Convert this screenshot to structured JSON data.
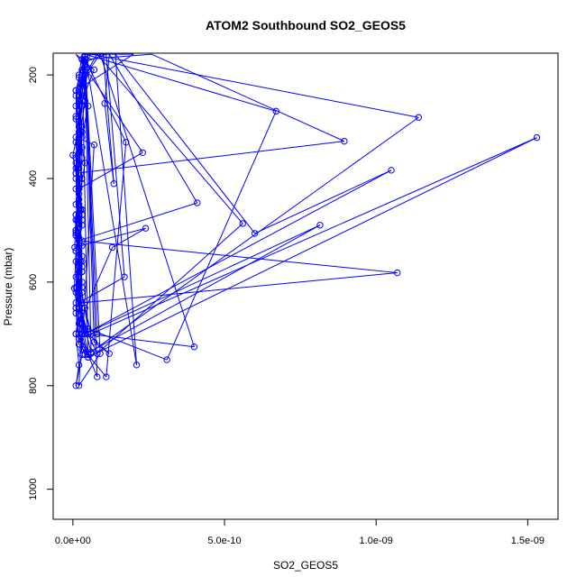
{
  "chart_data": {
    "type": "line",
    "title": "ATOM2 Southbound SO2_GEOS5",
    "xlabel": "SO2_GEOS5",
    "ylabel": "Pressure (mbar)",
    "xlim": [
      -6.5e-11,
      1.6e-09
    ],
    "ylim": [
      1058,
      158
    ],
    "y_reversed": true,
    "x_ticks": [
      {
        "value": 0,
        "label": "0.0e+00"
      },
      {
        "value": 5e-10,
        "label": "5.0e-10"
      },
      {
        "value": 1e-09,
        "label": "1.0e-09"
      },
      {
        "value": 1.5e-09,
        "label": "1.5e-09"
      }
    ],
    "y_ticks": [
      {
        "value": 200,
        "label": "200"
      },
      {
        "value": 400,
        "label": "400"
      },
      {
        "value": 600,
        "label": "600"
      },
      {
        "value": 800,
        "label": "800"
      },
      {
        "value": 1000,
        "label": "1000"
      }
    ],
    "series_color": "#0000ff",
    "marker": "open-circle",
    "grid": false,
    "series": [
      {
        "points": [
          [
            2e-11,
            720
          ],
          [
            1e-11,
            650
          ],
          [
            2.5e-11,
            560
          ],
          [
            1.5e-11,
            480
          ],
          [
            3e-11,
            400
          ],
          [
            2e-11,
            330
          ],
          [
            4e-11,
            250
          ],
          [
            3e-11,
            170
          ],
          [
            5.5e-11,
            160
          ],
          [
            1e-10,
            160
          ],
          [
            1.35e-10,
            410
          ],
          [
            1.05e-10,
            255
          ],
          [
            1.2e-10,
            160
          ],
          [
            4.1e-10,
            447
          ],
          [
            2e-11,
            520
          ],
          [
            3e-11,
            610
          ],
          [
            1e-11,
            700
          ],
          [
            2e-11,
            760
          ],
          [
            1e-11,
            800
          ],
          [
            3e-11,
            740
          ],
          [
            2e-11,
            680
          ],
          [
            5e-12,
            612
          ],
          [
            1e-11,
            540
          ],
          [
            2.5e-11,
            460
          ],
          [
            1.5e-11,
            380
          ],
          [
            3e-11,
            300
          ],
          [
            1e-11,
            230
          ],
          [
            4e-11,
            160
          ],
          [
            6.7e-10,
            270
          ],
          [
            3.1e-10,
            750
          ],
          [
            5e-11,
            690
          ],
          [
            3e-11,
            620
          ],
          [
            2e-11,
            560
          ],
          [
            1e-11,
            505
          ],
          [
            2e-11,
            440
          ],
          [
            1e-11,
            380
          ],
          [
            3e-11,
            320
          ],
          [
            1e-11,
            260
          ],
          [
            2e-11,
            205
          ],
          [
            3e-11,
            160
          ],
          [
            2e-10,
            160
          ],
          [
            1e-11,
            230
          ],
          [
            2e-11,
            300
          ],
          [
            0.0,
            355
          ],
          [
            2e-11,
            420
          ],
          [
            1e-11,
            500
          ],
          [
            2e-11,
            570
          ],
          [
            1e-11,
            650
          ],
          [
            2e-11,
            720
          ],
          [
            1.1e-10,
            783
          ],
          [
            1.75e-10,
            330
          ],
          [
            4e-11,
            170
          ],
          [
            2.6e-10,
            160
          ],
          [
            8.95e-10,
            328
          ],
          [
            1e-11,
            390
          ],
          [
            3e-11,
            460
          ],
          [
            2e-11,
            520
          ],
          [
            1.07e-09,
            582
          ],
          [
            3e-11,
            640
          ],
          [
            2e-11,
            700
          ],
          [
            5e-11,
            745
          ],
          [
            1.53e-09,
            321
          ],
          [
            6e-11,
            700
          ],
          [
            4e-11,
            650
          ],
          [
            1e-11,
            590
          ],
          [
            3e-11,
            530
          ],
          [
            2e-11,
            470
          ],
          [
            1e-11,
            400
          ],
          [
            3e-11,
            340
          ],
          [
            2e-11,
            290
          ],
          [
            5e-11,
            190
          ],
          [
            8e-11,
            160
          ],
          [
            5.6e-10,
            487
          ],
          [
            8e-11,
            738
          ],
          [
            5e-11,
            700
          ],
          [
            2e-11,
            640
          ],
          [
            3e-11,
            580
          ],
          [
            1e-11,
            510
          ],
          [
            2e-11,
            450
          ],
          [
            1e-11,
            370
          ],
          [
            3e-11,
            310
          ],
          [
            2e-11,
            240
          ],
          [
            4e-11,
            175
          ],
          [
            1.1e-10,
            160
          ],
          [
            1.7e-10,
            590
          ],
          [
            2e-11,
            640
          ],
          [
            1e-11,
            560
          ],
          [
            3e-11,
            490
          ],
          [
            1e-11,
            420
          ],
          [
            2e-11,
            350
          ],
          [
            1e-11,
            285
          ],
          [
            4e-11,
            160
          ],
          [
            2.1e-10,
            760
          ],
          [
            1.4e-10,
            160
          ],
          [
            6e-10,
            506
          ],
          [
            1.05e-09,
            384
          ],
          [
            4e-11,
            700
          ],
          [
            2e-11,
            640
          ],
          [
            3e-11,
            560
          ],
          [
            1e-11,
            480
          ],
          [
            2e-11,
            400
          ],
          [
            1e-11,
            320
          ],
          [
            7e-11,
            335
          ],
          [
            3e-11,
            730
          ],
          [
            2e-11,
            680
          ],
          [
            1.3e-10,
            533
          ],
          [
            2.4e-10,
            496
          ],
          [
            6e-12,
            533
          ],
          [
            1e-11,
            470
          ],
          [
            3e-11,
            410
          ],
          [
            2e-11,
            350
          ],
          [
            5e-11,
            260
          ],
          [
            3e-11,
            190
          ],
          [
            6e-11,
            160
          ],
          [
            1.14e-09,
            282
          ],
          [
            6e-11,
            735
          ],
          [
            4e-11,
            690
          ],
          [
            2e-11,
            620
          ],
          [
            3e-11,
            550
          ],
          [
            1e-11,
            480
          ],
          [
            2e-11,
            420
          ],
          [
            1e-11,
            360
          ],
          [
            2e-11,
            290
          ],
          [
            3e-11,
            210
          ],
          [
            9e-11,
            160
          ],
          [
            4e-10,
            725
          ],
          [
            5e-11,
            700
          ],
          [
            2e-11,
            650
          ],
          [
            3e-11,
            580
          ],
          [
            1e-11,
            510
          ],
          [
            2e-11,
            440
          ],
          [
            4e-11,
            370
          ],
          [
            2e-11,
            310
          ],
          [
            3e-11,
            250
          ],
          [
            7e-11,
            190
          ],
          [
            1e-11,
            160
          ],
          [
            2.3e-10,
            350
          ],
          [
            2e-11,
            420
          ],
          [
            1e-11,
            500
          ],
          [
            3e-11,
            570
          ],
          [
            2e-11,
            640
          ],
          [
            4e-11,
            700
          ],
          [
            8.15e-10,
            490
          ],
          [
            4e-11,
            740
          ],
          [
            2e-11,
            710
          ],
          [
            1e-11,
            660
          ],
          [
            3e-11,
            600
          ],
          [
            2e-11,
            530
          ],
          [
            1e-11,
            470
          ],
          [
            3e-11,
            400
          ],
          [
            2e-11,
            340
          ],
          [
            1e-11,
            280
          ],
          [
            3e-11,
            220
          ],
          [
            4e-11,
            165
          ],
          [
            9e-11,
            738
          ],
          [
            2e-11,
            800
          ],
          [
            3e-11,
            680
          ],
          [
            1e-11,
            620
          ],
          [
            2e-11,
            540
          ],
          [
            3e-11,
            460
          ],
          [
            1e-11,
            390
          ],
          [
            2e-11,
            320
          ],
          [
            3e-11,
            260
          ],
          [
            2e-11,
            200
          ],
          [
            4e-11,
            170
          ],
          [
            7e-11,
            716
          ],
          [
            1.2e-10,
            738
          ],
          [
            5e-11,
            700
          ],
          [
            2e-11,
            640
          ],
          [
            3e-11,
            580
          ],
          [
            1e-11,
            500
          ],
          [
            2e-11,
            430
          ],
          [
            3e-11,
            360
          ],
          [
            2e-11,
            300
          ],
          [
            1e-11,
            240
          ],
          [
            4e-11,
            180
          ],
          [
            8e-11,
            783
          ],
          [
            5e-11,
            740
          ],
          [
            3e-11,
            680
          ],
          [
            1e-11,
            610
          ],
          [
            2e-11,
            540
          ],
          [
            3e-11,
            470
          ],
          [
            2e-11,
            400
          ],
          [
            1e-11,
            330
          ],
          [
            2e-11,
            270
          ],
          [
            4e-11,
            200
          ],
          [
            3e-11,
            160
          ],
          [
            5e-11,
            745
          ],
          [
            3e-11,
            700
          ],
          [
            1e-11,
            640
          ],
          [
            2e-11,
            580
          ],
          [
            3e-11,
            520
          ],
          [
            1e-11,
            450
          ],
          [
            2e-11,
            380
          ],
          [
            3e-11,
            310
          ],
          [
            2e-11,
            250
          ],
          [
            4e-11,
            190
          ],
          [
            6e-11,
            738
          ],
          [
            1e-11,
            700
          ],
          [
            3e-11,
            650
          ],
          [
            2e-11,
            600
          ],
          [
            1e-11,
            540
          ],
          [
            3e-11,
            480
          ],
          [
            2e-11,
            420
          ],
          [
            1e-11,
            360
          ],
          [
            3e-11,
            300
          ],
          [
            2e-11,
            240
          ],
          [
            4e-11,
            180
          ],
          [
            8e-11,
            700
          ]
        ]
      }
    ]
  }
}
